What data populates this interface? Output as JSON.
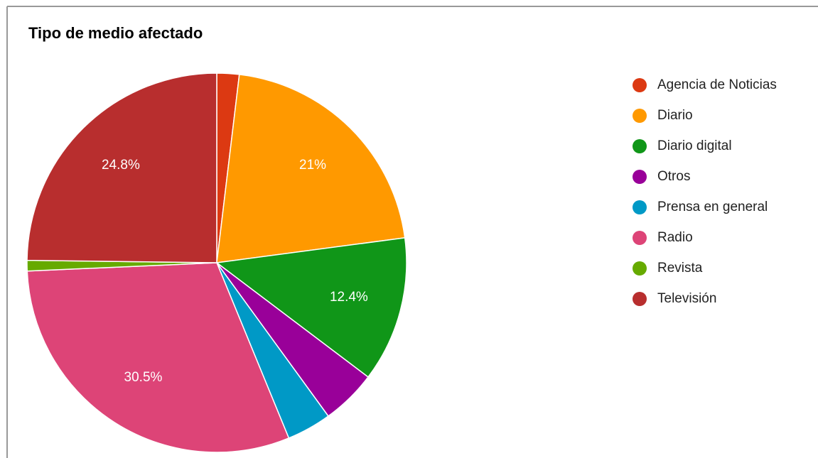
{
  "chart_data": {
    "type": "pie",
    "title": "Tipo de medio afectado",
    "categories": [
      "Agencia de Noticias",
      "Diario",
      "Diario digital",
      "Otros",
      "Prensa en general",
      "Radio",
      "Revista",
      "Televisión"
    ],
    "values": [
      1.9,
      21,
      12.4,
      4.7,
      3.8,
      30.5,
      0.9,
      24.8
    ],
    "value_labels": [
      null,
      "21%",
      "12.4%",
      null,
      null,
      "30.5%",
      null,
      "24.8%"
    ],
    "colors": [
      "#dc3912",
      "#ff9900",
      "#109618",
      "#990099",
      "#0099c6",
      "#dd4477",
      "#66aa00",
      "#b82e2e"
    ],
    "legend": "right"
  }
}
